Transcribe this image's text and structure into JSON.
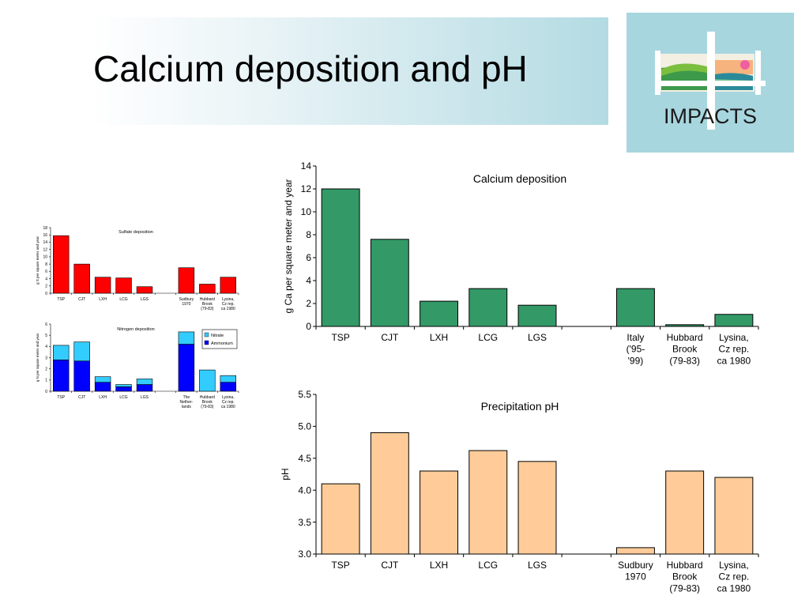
{
  "slide": {
    "title": "Calcium deposition and pH"
  },
  "logo": {
    "text": "IMPACTS",
    "icon": "impacts-landscape-logo"
  },
  "chart_data": [
    {
      "id": "sulfate",
      "type": "bar",
      "title": "Sulfate deposition",
      "ylabel": "g S per square meter and year",
      "xlabel": "",
      "ylim": [
        0,
        18
      ],
      "yticks": [
        0,
        2,
        4,
        6,
        8,
        10,
        12,
        14,
        16,
        18
      ],
      "categories": [
        "TSP",
        "CJT",
        "LXH",
        "LCG",
        "LGS",
        "",
        "Sudbury 1970",
        "Hubbard Brook (79-83)",
        "Lysina, Cz rep. ca 1980"
      ],
      "values": [
        15.8,
        8,
        4.4,
        4.2,
        1.8,
        null,
        7,
        2.5,
        4.4
      ],
      "color": "#ff0000"
    },
    {
      "id": "nitrogen",
      "type": "bar",
      "stacked": true,
      "title": "Nitrogen deposition",
      "ylabel": "g N per square meter and year",
      "xlabel": "",
      "ylim": [
        0,
        6
      ],
      "yticks": [
        0,
        1,
        2,
        3,
        4,
        5,
        6
      ],
      "legend": "top-right",
      "categories": [
        "TSP",
        "CJT",
        "LXH",
        "LCG",
        "LGS",
        "",
        "The Nether- lands",
        "Hubbard Brook (79-83)",
        "Lysina, Cz rep. ca 1980"
      ],
      "series": [
        {
          "name": "Ammonium",
          "color": "#0000ff",
          "values": [
            2.8,
            2.7,
            0.8,
            0.4,
            0.6,
            null,
            4.2,
            0,
            0.8
          ]
        },
        {
          "name": "Nitrate",
          "color": "#33ccff",
          "values": [
            1.3,
            1.7,
            0.5,
            0.2,
            0.5,
            null,
            1.1,
            1.9,
            0.6
          ]
        }
      ]
    },
    {
      "id": "calcium",
      "type": "bar",
      "title": "Calcium deposition",
      "ylabel": "g Ca per square meter and year",
      "xlabel": "",
      "ylim": [
        0,
        14
      ],
      "yticks": [
        0,
        2,
        4,
        6,
        8,
        10,
        12,
        14
      ],
      "categories": [
        "TSP",
        "CJT",
        "LXH",
        "LCG",
        "LGS",
        "",
        "Italy ('95- '99)",
        "Hubbard Brook (79-83)",
        "Lysina, Cz rep. ca 1980"
      ],
      "values": [
        12,
        7.6,
        2.2,
        3.3,
        1.85,
        null,
        3.3,
        0.15,
        1.05
      ],
      "color": "#339966"
    },
    {
      "id": "ph",
      "type": "bar",
      "title": "Precipitation pH",
      "ylabel": "pH",
      "xlabel": "",
      "ylim": [
        3.0,
        5.5
      ],
      "yticks": [
        3.0,
        3.5,
        4.0,
        4.5,
        5.0,
        5.5
      ],
      "tickDecimals": 1,
      "categories": [
        "TSP",
        "CJT",
        "LXH",
        "LCG",
        "LGS",
        "",
        "Sudbury 1970",
        "Hubbard Brook (79-83)",
        "Lysina, Cz rep. ca 1980"
      ],
      "values": [
        4.1,
        4.9,
        4.3,
        4.62,
        4.45,
        null,
        3.1,
        4.3,
        4.2
      ],
      "color": "#ffcc99"
    }
  ]
}
